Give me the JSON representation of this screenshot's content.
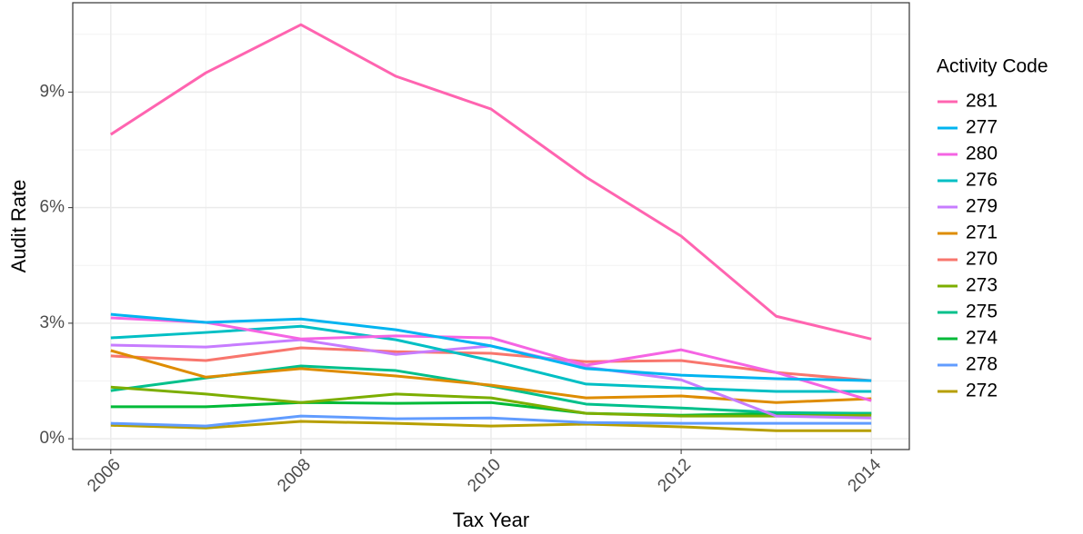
{
  "chart_data": {
    "type": "line",
    "xlabel": "Tax Year",
    "ylabel": "Audit Rate",
    "legend_title": "Activity Code",
    "x": [
      2006,
      2007,
      2008,
      2009,
      2010,
      2011,
      2012,
      2013,
      2014
    ],
    "xlim": [
      2005.6,
      2014.4
    ],
    "xticks": [
      2006,
      2008,
      2010,
      2012,
      2014
    ],
    "xminorticks": [
      2007,
      2009,
      2011,
      2013
    ],
    "ylim": [
      -0.28,
      11.32
    ],
    "yticks": [
      {
        "value": 0,
        "label": "0%"
      },
      {
        "value": 3,
        "label": "3%"
      },
      {
        "value": 6,
        "label": "6%"
      },
      {
        "value": 9,
        "label": "9%"
      }
    ],
    "yminorticks": [
      1.5,
      4.5,
      7.5,
      10.5
    ],
    "grid": true,
    "legend": "right",
    "series": [
      {
        "name": "281",
        "color": "#FF64B0",
        "values": [
          7.9,
          9.5,
          10.75,
          9.41,
          8.56,
          6.79,
          5.26,
          3.18,
          2.59
        ]
      },
      {
        "name": "277",
        "color": "#00B4F0",
        "values": [
          3.23,
          3.02,
          3.11,
          2.83,
          2.41,
          1.82,
          1.65,
          1.56,
          1.51
        ]
      },
      {
        "name": "280",
        "color": "#F564E3",
        "values": [
          3.14,
          3.02,
          2.59,
          2.67,
          2.62,
          1.91,
          2.31,
          1.72,
          0.99
        ]
      },
      {
        "name": "276",
        "color": "#00BFC4",
        "values": [
          2.62,
          2.76,
          2.92,
          2.57,
          2.03,
          1.42,
          1.32,
          1.23,
          1.23
        ]
      },
      {
        "name": "279",
        "color": "#C77CFF",
        "values": [
          2.43,
          2.38,
          2.57,
          2.19,
          2.41,
          1.86,
          1.53,
          0.59,
          0.54
        ]
      },
      {
        "name": "271",
        "color": "#DE8C00",
        "values": [
          2.29,
          1.6,
          1.82,
          1.63,
          1.39,
          1.06,
          1.11,
          0.94,
          1.04
        ]
      },
      {
        "name": "270",
        "color": "#F8766D",
        "values": [
          2.15,
          2.03,
          2.36,
          2.26,
          2.22,
          2.0,
          2.03,
          1.72,
          1.51
        ]
      },
      {
        "name": "273",
        "color": "#7CAE00",
        "values": [
          1.34,
          1.16,
          0.94,
          1.16,
          1.06,
          0.66,
          0.59,
          0.59,
          0.61
        ]
      },
      {
        "name": "275",
        "color": "#00C08B",
        "values": [
          1.25,
          1.58,
          1.89,
          1.77,
          1.37,
          0.9,
          0.8,
          0.68,
          0.66
        ]
      },
      {
        "name": "274",
        "color": "#00BA38",
        "values": [
          0.83,
          0.83,
          0.94,
          0.92,
          0.94,
          0.66,
          0.61,
          0.66,
          0.66
        ]
      },
      {
        "name": "278",
        "color": "#619CFF",
        "values": [
          0.4,
          0.33,
          0.59,
          0.52,
          0.54,
          0.42,
          0.4,
          0.4,
          0.4
        ]
      },
      {
        "name": "272",
        "color": "#B79F00",
        "values": [
          0.35,
          0.28,
          0.45,
          0.4,
          0.33,
          0.38,
          0.31,
          0.21,
          0.21
        ]
      }
    ]
  }
}
